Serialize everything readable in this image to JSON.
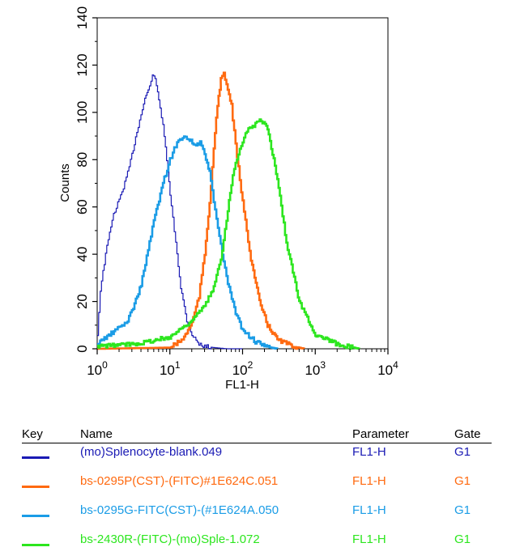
{
  "chart_data": {
    "type": "line",
    "title": "",
    "xlabel": "FL1-H",
    "ylabel": "Counts",
    "x_scale": "log",
    "xlim": [
      1,
      10000
    ],
    "ylim": [
      0,
      140
    ],
    "x_ticks": [
      {
        "base": "10",
        "exp": "0",
        "value": 1
      },
      {
        "base": "10",
        "exp": "1",
        "value": 10
      },
      {
        "base": "10",
        "exp": "2",
        "value": 100
      },
      {
        "base": "10",
        "exp": "3",
        "value": 1000
      },
      {
        "base": "10",
        "exp": "4",
        "value": 10000
      }
    ],
    "y_ticks": [
      "0",
      "20",
      "40",
      "60",
      "80",
      "100",
      "120",
      "140"
    ],
    "grid": false,
    "series": [
      {
        "name": "(mo)Splenocyte-blank.049",
        "color": "#1a1ab4",
        "x": [
          1.0,
          1.1,
          1.3,
          1.6,
          2.0,
          2.5,
          3.0,
          3.5,
          4.0,
          4.5,
          5.0,
          5.5,
          6.0,
          6.5,
          7.0,
          8.0,
          9.0,
          10.0,
          12.0,
          14.0,
          17.0,
          20.0,
          25.0,
          30.0,
          40.0,
          60.0,
          100.0
        ],
        "y": [
          6,
          25,
          40,
          55,
          63,
          72,
          82,
          92,
          99,
          106,
          109,
          114,
          116,
          111,
          106,
          94,
          80,
          65,
          45,
          26,
          12,
          6,
          2,
          1,
          0.5,
          0,
          0
        ]
      },
      {
        "name": "bs-0295P(CST)-(FITC)#1E624C.051",
        "color": "#ff6a10",
        "x": [
          1.0,
          10.0,
          15.0,
          20.0,
          25.0,
          30.0,
          35.0,
          40.0,
          45.0,
          50.0,
          55.0,
          60.0,
          70.0,
          80.0,
          100.0,
          130.0,
          170.0,
          220.0,
          300.0,
          500.0,
          700.0
        ],
        "y": [
          0,
          0.5,
          4,
          11,
          22,
          40,
          62,
          85,
          103,
          114,
          116,
          112,
          103,
          86,
          62,
          38,
          20,
          10,
          4,
          1,
          0
        ]
      },
      {
        "name": "bs-0295G-FITC(CST)-(#1E624A.050",
        "color": "#1a9ce6",
        "x": [
          1.0,
          1.2,
          1.5,
          2.0,
          2.5,
          3.0,
          4.0,
          5.0,
          6.0,
          8.0,
          10.0,
          12.0,
          15.0,
          18.0,
          22.0,
          26.0,
          30.0,
          35.0,
          40.0,
          50.0,
          60.0,
          80.0,
          100.0,
          150.0,
          200.0,
          300.0
        ],
        "y": [
          2,
          4,
          6,
          9,
          11,
          16,
          27,
          42,
          54,
          70,
          80,
          86,
          90,
          89,
          86,
          87,
          82,
          75,
          62,
          44,
          30,
          15,
          8,
          3,
          1,
          0
        ]
      },
      {
        "name": "bs-2430R-(FITC)-(mo)Sple-1.072",
        "color": "#2ce61e",
        "x": [
          1.0,
          3.0,
          5.0,
          10.0,
          20.0,
          30.0,
          40.0,
          50.0,
          60.0,
          70.0,
          80.0,
          100.0,
          120.0,
          150.0,
          180.0,
          220.0,
          300.0,
          400.0,
          600.0,
          1000.0,
          2000.0,
          4000.0
        ],
        "y": [
          1,
          2,
          3,
          5,
          12,
          18,
          26,
          38,
          55,
          70,
          79,
          88,
          93,
          95,
          97,
          93,
          72,
          45,
          20,
          6,
          2,
          0
        ]
      }
    ]
  },
  "key_table": {
    "headers": {
      "key": "Key",
      "name": "Name",
      "parameter": "Parameter",
      "gate": "Gate"
    },
    "rows": [
      {
        "name": "(mo)Splenocyte-blank.049",
        "parameter": "FL1-H",
        "gate": "G1",
        "color": "#1a1ab4"
      },
      {
        "name": "bs-0295P(CST)-(FITC)#1E624C.051",
        "parameter": "FL1-H",
        "gate": "G1",
        "color": "#ff6a10"
      },
      {
        "name": "bs-0295G-FITC(CST)-(#1E624A.050",
        "parameter": "FL1-H",
        "gate": "G1",
        "color": "#1a9ce6"
      },
      {
        "name": "bs-2430R-(FITC)-(mo)Sple-1.072",
        "parameter": "FL1-H",
        "gate": "G1",
        "color": "#2ce61e"
      }
    ]
  }
}
